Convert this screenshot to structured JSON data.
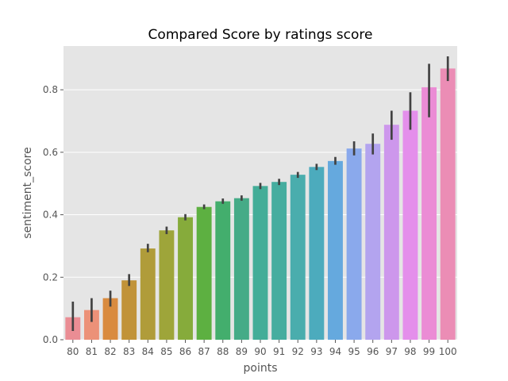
{
  "chart_data": {
    "type": "bar",
    "title": "Compared Score by ratings score",
    "xlabel": "points",
    "ylabel": "sentiment_score",
    "ylim": [
      0,
      0.94
    ],
    "yticks": [
      0.0,
      0.2,
      0.4,
      0.6,
      0.8
    ],
    "ytick_labels": [
      "0.0",
      "0.2",
      "0.4",
      "0.6",
      "0.8"
    ],
    "grid": true,
    "categories": [
      "80",
      "81",
      "82",
      "83",
      "84",
      "85",
      "86",
      "87",
      "88",
      "89",
      "90",
      "91",
      "92",
      "93",
      "94",
      "95",
      "96",
      "97",
      "98",
      "99",
      "100"
    ],
    "values": [
      0.072,
      0.095,
      0.133,
      0.19,
      0.292,
      0.35,
      0.392,
      0.425,
      0.443,
      0.453,
      0.492,
      0.505,
      0.528,
      0.553,
      0.572,
      0.612,
      0.627,
      0.688,
      0.733,
      0.808,
      0.868
    ],
    "err_low": [
      0.028,
      0.057,
      0.106,
      0.172,
      0.28,
      0.338,
      0.382,
      0.418,
      0.435,
      0.445,
      0.482,
      0.495,
      0.518,
      0.543,
      0.56,
      0.59,
      0.593,
      0.64,
      0.672,
      0.712,
      0.828
    ],
    "err_high": [
      0.122,
      0.133,
      0.157,
      0.21,
      0.307,
      0.362,
      0.402,
      0.433,
      0.452,
      0.462,
      0.502,
      0.515,
      0.537,
      0.563,
      0.585,
      0.635,
      0.66,
      0.733,
      0.792,
      0.883,
      0.907
    ],
    "colors": [
      "#ea8d94",
      "#ec9178",
      "#d98b3f",
      "#c19339",
      "#b09c3a",
      "#9ea53a",
      "#86ab3b",
      "#5db041",
      "#43ae6d",
      "#45ab87",
      "#43ad98",
      "#46ad9f",
      "#4aadad",
      "#4cabbd",
      "#65a9de",
      "#8aa9ec",
      "#b3a4ef",
      "#cd97ec",
      "#e48feb",
      "#eb8cd5",
      "#eb8db5"
    ],
    "background": "#e5e5e5",
    "grid_color": "#ffffff",
    "error_bar_color": "#424242"
  }
}
